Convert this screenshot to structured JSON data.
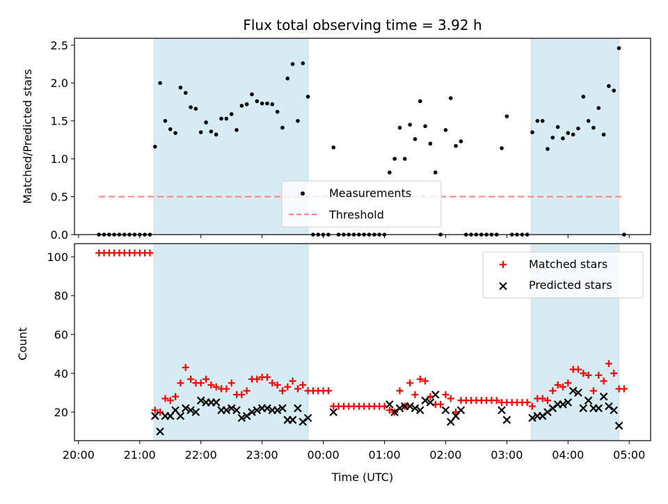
{
  "chart_data": [
    {
      "type": "scatter",
      "title": "Flux total observing time = 3.92 h",
      "xlabel": "",
      "ylabel": "Matched/Predicted stars",
      "ylim": [
        0,
        2.59
      ],
      "yticks": [
        "0.0",
        "0.5",
        "1.0",
        "1.5",
        "2.0",
        "2.5"
      ],
      "ytick_values": [
        0,
        0.5,
        1.0,
        1.5,
        2.0,
        2.5
      ],
      "legend": {
        "placement": "lower-center",
        "entries": [
          "Measurements",
          "Threshold"
        ]
      },
      "threshold": {
        "name": "Threshold",
        "value": 0.5,
        "color": "#ff7f7f",
        "from": "20:20",
        "to": "04:55"
      },
      "shaded_intervals": [
        [
          "21:14",
          "23:45"
        ],
        [
          "03:24",
          "04:50"
        ]
      ],
      "shade_color": "#add8e6",
      "series": [
        {
          "name": "Measurements",
          "color": "#000000",
          "values": [
            0,
            0,
            0,
            0,
            0,
            0,
            0,
            0,
            0,
            0,
            0,
            1.16,
            2.0,
            1.5,
            1.39,
            1.34,
            1.94,
            1.87,
            1.68,
            1.66,
            1.35,
            1.48,
            1.36,
            1.32,
            1.53,
            1.53,
            1.59,
            1.38,
            1.7,
            1.72,
            1.85,
            1.76,
            1.73,
            1.73,
            1.72,
            1.62,
            1.41,
            2.06,
            2.25,
            1.5,
            2.26,
            1.82,
            0,
            0,
            0,
            0,
            1.15,
            0,
            0,
            0,
            0,
            0,
            0,
            0,
            0,
            0,
            0,
            0.82,
            1.0,
            1.41,
            1.0,
            1.45,
            1.26,
            1.76,
            1.43,
            1.2,
            0.82,
            0,
            1.38,
            1.8,
            1.17,
            1.23,
            0,
            0,
            0,
            0,
            0,
            0,
            0,
            1.14,
            1.56,
            0,
            0,
            0,
            0,
            1.35,
            1.5,
            1.5,
            1.13,
            1.28,
            1.42,
            1.27,
            1.34,
            1.32,
            1.4,
            1.82,
            1.5,
            1.41,
            1.67,
            1.32,
            1.96,
            1.9,
            2.46,
            0
          ]
        }
      ]
    },
    {
      "type": "scatter",
      "title": "",
      "xlabel": "Time (UTC)",
      "ylabel": "Count",
      "ylim": [
        5.3,
        106.8
      ],
      "yticks": [
        "20",
        "40",
        "60",
        "80",
        "100"
      ],
      "ytick_values": [
        20,
        40,
        60,
        80,
        100
      ],
      "legend": {
        "placement": "top-right",
        "entries": [
          "Matched stars",
          "Predicted stars"
        ]
      },
      "shaded_intervals": [
        [
          "21:14",
          "23:45"
        ],
        [
          "03:24",
          "04:50"
        ]
      ],
      "series": [
        {
          "name": "Matched stars",
          "marker": "+",
          "color": "#ff0000",
          "values": [
            102,
            102,
            102,
            102,
            102,
            102,
            102,
            102,
            102,
            102,
            102,
            21,
            20,
            27,
            26,
            28,
            35,
            43,
            37,
            35,
            35,
            37,
            34,
            33,
            32,
            32,
            35,
            29,
            29,
            31,
            37,
            37,
            38,
            38,
            35,
            34,
            31,
            33,
            36,
            32,
            34,
            31,
            31,
            31,
            31,
            31,
            23,
            23,
            23,
            23,
            23,
            23,
            23,
            23,
            23,
            23,
            23,
            21,
            20,
            31,
            23,
            35,
            29,
            37,
            36,
            28,
            24,
            24,
            29,
            27,
            20,
            26,
            26,
            26,
            26,
            26,
            26,
            26,
            26,
            25,
            25,
            25,
            25,
            25,
            25,
            23,
            27,
            27,
            26,
            31,
            34,
            33,
            35,
            42,
            42,
            40,
            39,
            31,
            39,
            36,
            45,
            40,
            32,
            32
          ]
        },
        {
          "name": "Predicted stars",
          "marker": "x",
          "color": "#000000",
          "values": [
            null,
            null,
            null,
            null,
            null,
            null,
            null,
            null,
            null,
            null,
            null,
            18,
            10,
            18,
            18,
            21,
            18,
            22,
            21,
            20,
            26,
            25,
            25,
            25,
            21,
            21,
            22,
            21,
            17,
            18,
            20,
            21,
            22,
            22,
            21,
            21,
            22,
            16,
            16,
            22,
            15,
            17,
            null,
            null,
            null,
            null,
            20,
            null,
            null,
            null,
            null,
            null,
            null,
            null,
            null,
            null,
            null,
            24,
            20,
            22,
            23,
            23,
            22,
            21,
            26,
            25,
            29,
            null,
            21,
            15,
            18,
            21,
            null,
            null,
            null,
            null,
            null,
            null,
            null,
            21,
            16,
            null,
            null,
            null,
            null,
            17,
            18,
            18,
            20,
            22,
            24,
            24,
            25,
            31,
            30,
            22,
            26,
            22,
            22,
            28,
            23,
            21,
            13,
            null
          ]
        }
      ]
    }
  ],
  "x_axis": {
    "start_time": "20:20",
    "cadence_minutes": 5,
    "range": [
      "19:56",
      "05:21"
    ],
    "tick_labels": [
      "20:00",
      "21:00",
      "22:00",
      "23:00",
      "00:00",
      "01:00",
      "02:00",
      "03:00",
      "04:00",
      "05:00"
    ]
  }
}
